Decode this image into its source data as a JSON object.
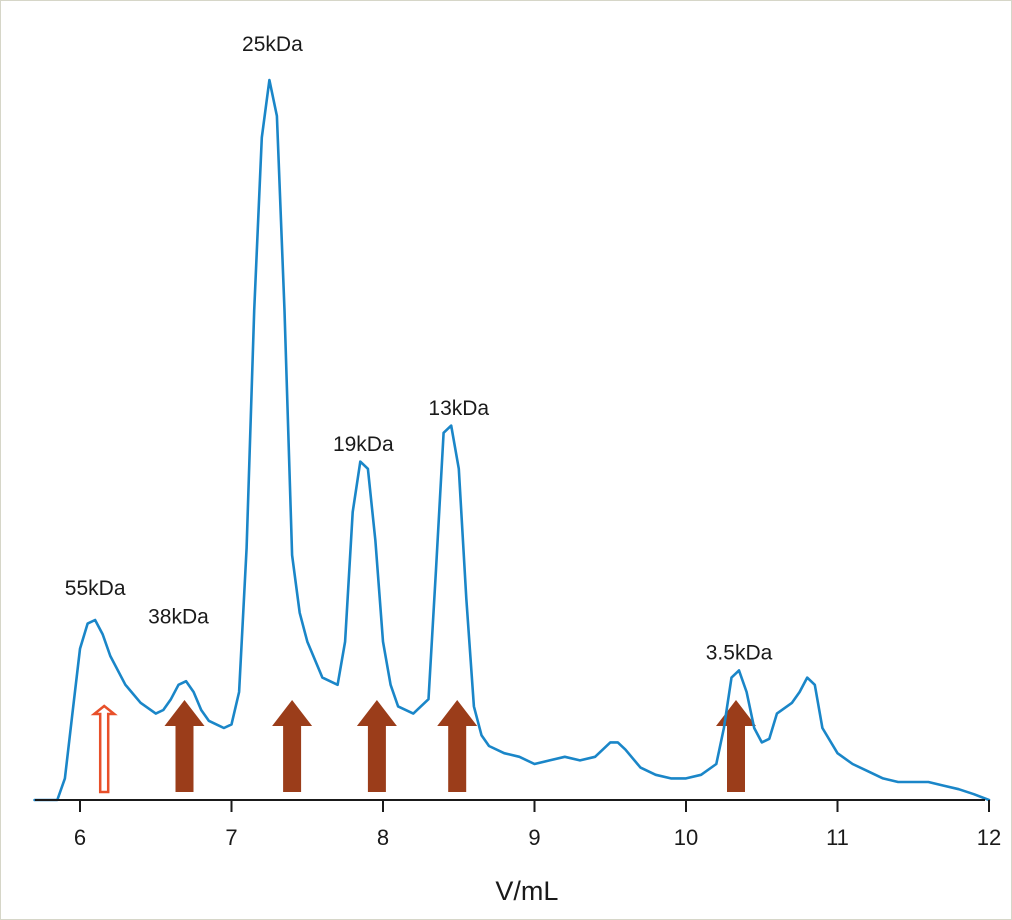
{
  "chart_data": {
    "type": "line",
    "title": "",
    "xlabel": "V/mL",
    "ylabel": "",
    "xlim": [
      5.7,
      12.0
    ],
    "ylim": [
      0,
      1.0
    ],
    "x_ticks": [
      6,
      7,
      8,
      9,
      10,
      11,
      12
    ],
    "x_tick_labels": [
      "6",
      "7",
      "8",
      "9",
      "10",
      "11",
      "12"
    ],
    "grid": false,
    "line_color": "#1a86c8",
    "series": [
      {
        "x": [
          5.7,
          5.85,
          5.9,
          5.95,
          6.0,
          6.05,
          6.1,
          6.15,
          6.2,
          6.3,
          6.4,
          6.5,
          6.55,
          6.6,
          6.65,
          6.7,
          6.75,
          6.8,
          6.85,
          6.9,
          6.95,
          7.0,
          7.05,
          7.1,
          7.15,
          7.2,
          7.25,
          7.3,
          7.35,
          7.4,
          7.45,
          7.5,
          7.6,
          7.7,
          7.75,
          7.8,
          7.85,
          7.9,
          7.95,
          8.0,
          8.05,
          8.1,
          8.2,
          8.3,
          8.35,
          8.4,
          8.45,
          8.5,
          8.55,
          8.6,
          8.65,
          8.7,
          8.8,
          8.9,
          9.0,
          9.1,
          9.2,
          9.3,
          9.4,
          9.5,
          9.55,
          9.6,
          9.7,
          9.8,
          9.9,
          10.0,
          10.1,
          10.2,
          10.25,
          10.3,
          10.35,
          10.4,
          10.45,
          10.5,
          10.55,
          10.6,
          10.7,
          10.75,
          10.8,
          10.85,
          10.9,
          11.0,
          11.1,
          11.2,
          11.3,
          11.4,
          11.5,
          11.6,
          11.7,
          11.8,
          11.9,
          12.0
        ],
        "y": [
          0.0,
          0.0,
          0.03,
          0.12,
          0.21,
          0.245,
          0.25,
          0.23,
          0.2,
          0.16,
          0.135,
          0.12,
          0.125,
          0.14,
          0.16,
          0.165,
          0.15,
          0.125,
          0.11,
          0.105,
          0.1,
          0.105,
          0.15,
          0.35,
          0.68,
          0.92,
          1.0,
          0.95,
          0.68,
          0.34,
          0.26,
          0.22,
          0.17,
          0.16,
          0.22,
          0.4,
          0.47,
          0.46,
          0.36,
          0.22,
          0.16,
          0.13,
          0.12,
          0.14,
          0.32,
          0.51,
          0.52,
          0.46,
          0.28,
          0.13,
          0.09,
          0.075,
          0.065,
          0.06,
          0.05,
          0.055,
          0.06,
          0.055,
          0.06,
          0.08,
          0.08,
          0.07,
          0.045,
          0.035,
          0.03,
          0.03,
          0.035,
          0.05,
          0.1,
          0.17,
          0.18,
          0.15,
          0.1,
          0.08,
          0.085,
          0.12,
          0.135,
          0.15,
          0.17,
          0.16,
          0.1,
          0.065,
          0.05,
          0.04,
          0.03,
          0.025,
          0.025,
          0.025,
          0.02,
          0.015,
          0.008,
          0.0
        ]
      }
    ],
    "peak_labels": [
      {
        "text": "55kDa",
        "x": 6.1,
        "y": 0.285
      },
      {
        "text": "38kDa",
        "x": 6.65,
        "y": 0.245
      },
      {
        "text": "25kDa",
        "x": 7.27,
        "y": 1.04
      },
      {
        "text": "19kDa",
        "x": 7.87,
        "y": 0.485
      },
      {
        "text": "13kDa",
        "x": 8.5,
        "y": 0.535
      },
      {
        "text": "3.5kDa",
        "x": 10.35,
        "y": 0.195
      }
    ],
    "arrows": [
      {
        "x": 6.16,
        "style": "outline",
        "color": "#e8502a"
      },
      {
        "x": 6.69,
        "style": "filled",
        "color": "#9b3d1a"
      },
      {
        "x": 7.4,
        "style": "filled",
        "color": "#9b3d1a"
      },
      {
        "x": 7.96,
        "style": "filled",
        "color": "#9b3d1a"
      },
      {
        "x": 8.49,
        "style": "filled",
        "color": "#9b3d1a"
      },
      {
        "x": 10.33,
        "style": "filled",
        "color": "#9b3d1a"
      }
    ]
  }
}
